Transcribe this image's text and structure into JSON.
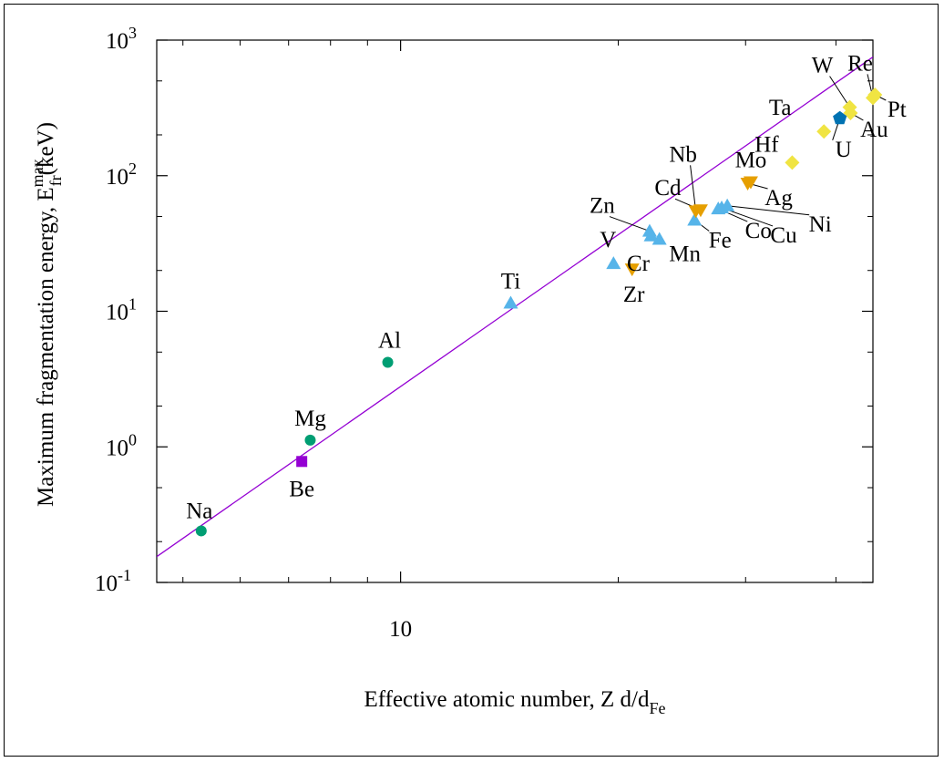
{
  "chart_data": {
    "type": "scatter",
    "xlabel": {
      "main": "Effective atomic number, Z d/d",
      "sub": "Fe"
    },
    "ylabel": {
      "main": "Maximum fragmentation energy, E",
      "sup": "max",
      "sub": "fr",
      "unit": "(keV)"
    },
    "x_scale": "log",
    "y_scale": "log",
    "xlim": [
      4.6,
      45
    ],
    "ylim": [
      0.1,
      1000
    ],
    "x_ticks": [
      {
        "value": 10,
        "label": "10"
      }
    ],
    "y_ticks": [
      {
        "value": 0.1,
        "base": "10",
        "exp": "-1"
      },
      {
        "value": 1,
        "base": "10",
        "exp": "0"
      },
      {
        "value": 10,
        "base": "10",
        "exp": "1"
      },
      {
        "value": 100,
        "base": "10",
        "exp": "2"
      },
      {
        "value": 1000,
        "base": "10",
        "exp": "3"
      }
    ],
    "fit_line": {
      "color": "#9400d3",
      "points": [
        [
          4.6,
          0.155
        ],
        [
          45,
          750
        ]
      ]
    },
    "series": [
      {
        "marker": "circle",
        "color": "#009e73",
        "points": [
          {
            "label": "Na",
            "x": 5.3,
            "y": 0.24
          },
          {
            "label": "Mg",
            "x": 7.5,
            "y": 1.12
          },
          {
            "label": "Al",
            "x": 9.6,
            "y": 4.2
          }
        ]
      },
      {
        "marker": "square",
        "color": "#9400d3",
        "points": [
          {
            "label": "Be",
            "x": 7.3,
            "y": 0.78
          }
        ]
      },
      {
        "marker": "triangle-up",
        "color": "#56b4e9",
        "points": [
          {
            "label": "Ti",
            "x": 14.2,
            "y": 11.5
          },
          {
            "label": "V",
            "x": 19.7,
            "y": 22.5
          },
          {
            "label": "Cr",
            "x": 22.2,
            "y": 36
          },
          {
            "label": "Mn",
            "x": 22.8,
            "y": 34
          },
          {
            "label": "Fe",
            "x": 25.5,
            "y": 47
          },
          {
            "label": "Co",
            "x": 27.5,
            "y": 57
          },
          {
            "label": "Ni",
            "x": 28.3,
            "y": 60
          },
          {
            "label": "Cu",
            "x": 27.8,
            "y": 58
          },
          {
            "label": "Zn",
            "x": 22.1,
            "y": 39
          }
        ]
      },
      {
        "marker": "triangle-down",
        "color": "#e69f00",
        "points": [
          {
            "label": "Zr",
            "x": 20.9,
            "y": 20.5
          },
          {
            "label": "Nb",
            "x": 25.6,
            "y": 55
          },
          {
            "label": "Mo",
            "x": 30.5,
            "y": 90
          },
          {
            "label": "Cd",
            "x": 26.0,
            "y": 56
          },
          {
            "label": "Ag",
            "x": 30.2,
            "y": 88
          }
        ]
      },
      {
        "marker": "diamond",
        "color": "#f0e442",
        "points": [
          {
            "label": "Hf",
            "x": 34.8,
            "y": 125
          },
          {
            "label": "Ta",
            "x": 38.5,
            "y": 212
          },
          {
            "label": "W",
            "x": 41.8,
            "y": 320
          },
          {
            "label": "Au",
            "x": 41.9,
            "y": 290
          },
          {
            "label": "Re",
            "x": 45.0,
            "y": 375
          },
          {
            "label": "Pt",
            "x": 45.3,
            "y": 395
          }
        ]
      },
      {
        "marker": "pentagon",
        "color": "#0072b2",
        "points": [
          {
            "label": "U",
            "x": 40.5,
            "y": 265
          }
        ]
      }
    ]
  }
}
